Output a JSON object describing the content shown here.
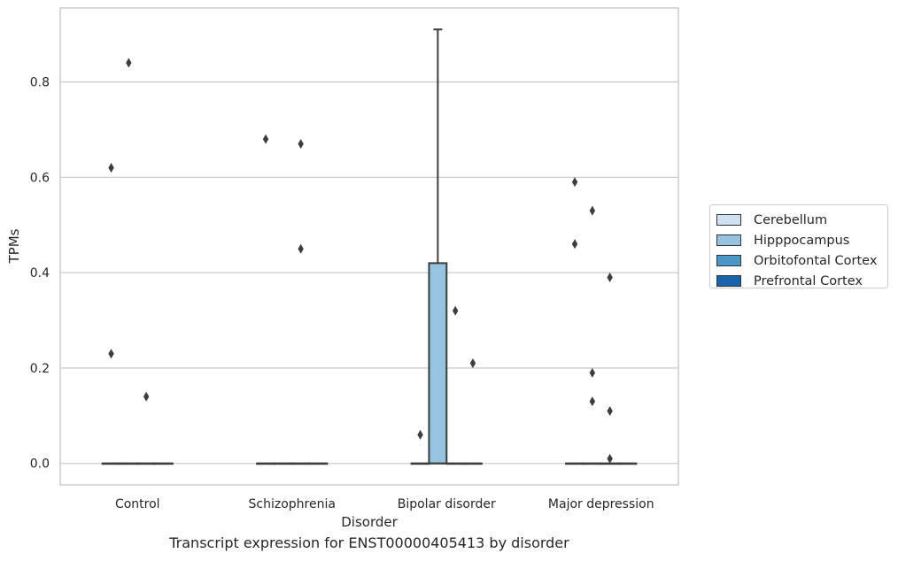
{
  "caption": "Transcript expression for ENST00000405413 by disorder",
  "legend": {
    "items": [
      {
        "label": "Cerebellum",
        "color": "#d0e1f2"
      },
      {
        "label": "Hipppocampus",
        "color": "#94c4df"
      },
      {
        "label": "Orbitofontal Cortex",
        "color": "#4a98c9"
      },
      {
        "label": "Prefrontal Cortex",
        "color": "#1764ab"
      }
    ]
  },
  "chart_data": {
    "type": "box",
    "xlabel": "Disorder",
    "ylabel": "TPMs",
    "categories": [
      "Control",
      "Schizophrenia",
      "Bipolar disorder",
      "Major depression"
    ],
    "ylim": [
      -0.045,
      0.955
    ],
    "yticks": [
      0.0,
      0.2,
      0.4,
      0.6,
      0.8
    ],
    "ytick_labels": [
      "0.0",
      "0.2",
      "0.4",
      "0.6",
      "0.8"
    ],
    "grid": "horizontal",
    "series": [
      {
        "name": "Cerebellum",
        "color": "#d0e1f2",
        "boxes": [
          {
            "q1": 0,
            "median": 0,
            "q3": 0,
            "whislo": 0,
            "whishi": 0,
            "fliers": [
              0.62,
              0.23
            ]
          },
          {
            "q1": 0,
            "median": 0,
            "q3": 0,
            "whislo": 0,
            "whishi": 0,
            "fliers": [
              0.68
            ]
          },
          {
            "q1": 0,
            "median": 0,
            "q3": 0,
            "whislo": 0,
            "whishi": 0,
            "fliers": [
              0.06
            ]
          },
          {
            "q1": 0,
            "median": 0,
            "q3": 0,
            "whislo": 0,
            "whishi": 0,
            "fliers": [
              0.59,
              0.46
            ]
          }
        ]
      },
      {
        "name": "Hipppocampus",
        "color": "#94c4df",
        "boxes": [
          {
            "q1": 0,
            "median": 0,
            "q3": 0,
            "whislo": 0,
            "whishi": 0,
            "fliers": [
              0.84
            ]
          },
          {
            "q1": 0,
            "median": 0,
            "q3": 0,
            "whislo": 0,
            "whishi": 0,
            "fliers": []
          },
          {
            "q1": 0,
            "median": 0,
            "q3": 0.42,
            "whislo": 0,
            "whishi": 0.91,
            "fliers": []
          },
          {
            "q1": 0,
            "median": 0,
            "q3": 0,
            "whislo": 0,
            "whishi": 0,
            "fliers": [
              0.53,
              0.19,
              0.13
            ]
          }
        ]
      },
      {
        "name": "Orbitofontal Cortex",
        "color": "#4a98c9",
        "boxes": [
          {
            "q1": 0,
            "median": 0,
            "q3": 0,
            "whislo": 0,
            "whishi": 0,
            "fliers": [
              0.14
            ]
          },
          {
            "q1": 0,
            "median": 0,
            "q3": 0,
            "whislo": 0,
            "whishi": 0,
            "fliers": [
              0.67,
              0.45
            ]
          },
          {
            "q1": 0,
            "median": 0,
            "q3": 0,
            "whislo": 0,
            "whishi": 0,
            "fliers": [
              0.32
            ]
          },
          {
            "q1": 0,
            "median": 0,
            "q3": 0,
            "whislo": 0,
            "whishi": 0,
            "fliers": [
              0.39,
              0.11,
              0.01
            ]
          }
        ]
      },
      {
        "name": "Prefrontal Cortex",
        "color": "#1764ab",
        "boxes": [
          {
            "q1": 0,
            "median": 0,
            "q3": 0,
            "whislo": 0,
            "whishi": 0,
            "fliers": []
          },
          {
            "q1": 0,
            "median": 0,
            "q3": 0,
            "whislo": 0,
            "whishi": 0,
            "fliers": []
          },
          {
            "q1": 0,
            "median": 0,
            "q3": 0,
            "whislo": 0,
            "whishi": 0,
            "fliers": [
              0.21
            ]
          },
          {
            "q1": 0,
            "median": 0,
            "q3": 0,
            "whislo": 0,
            "whishi": 0,
            "fliers": []
          }
        ]
      }
    ]
  }
}
